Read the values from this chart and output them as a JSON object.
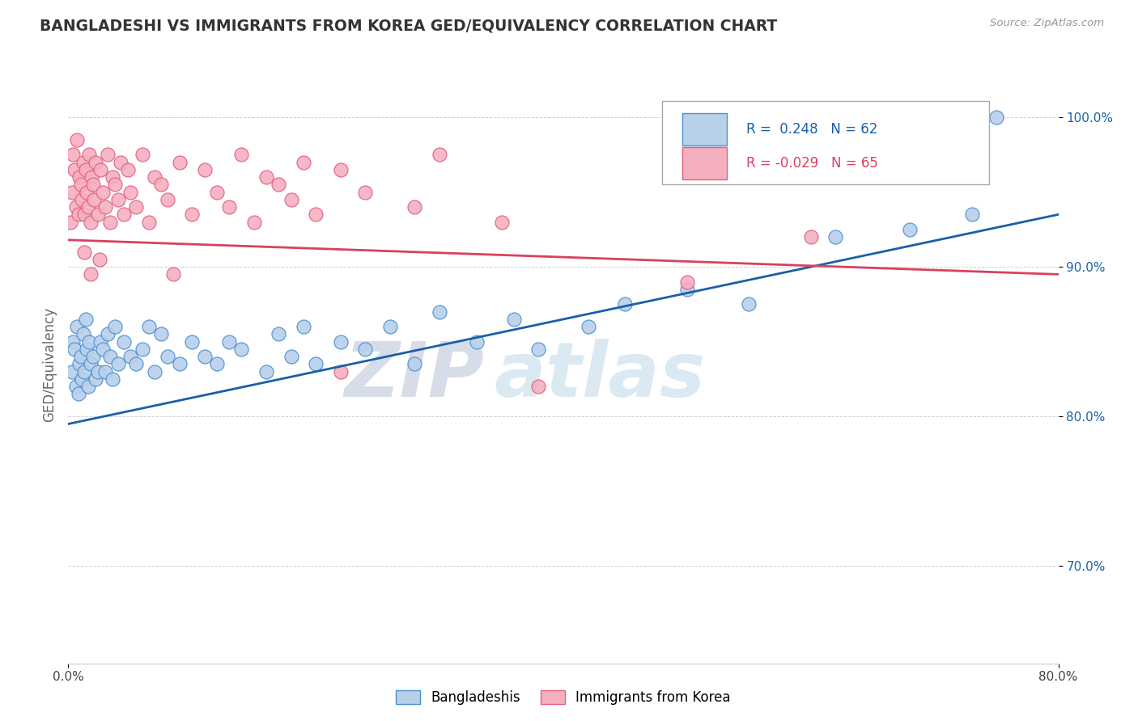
{
  "title": "BANGLADESHI VS IMMIGRANTS FROM KOREA GED/EQUIVALENCY CORRELATION CHART",
  "source": "Source: ZipAtlas.com",
  "ylabel": "GED/Equivalency",
  "xlim": [
    0.0,
    80.0
  ],
  "ylim": [
    63.5,
    103.5
  ],
  "ytick_positions": [
    70.0,
    80.0,
    90.0,
    100.0
  ],
  "ytick_labels": [
    "70.0%",
    "80.0%",
    "90.0%",
    "100.0%"
  ],
  "legend_r_blue": "0.248",
  "legend_n_blue": "62",
  "legend_r_pink": "-0.029",
  "legend_n_pink": "65",
  "blue_color": "#b8d0ea",
  "pink_color": "#f5b0c0",
  "blue_edge_color": "#4a90d0",
  "pink_edge_color": "#e06080",
  "blue_line_color": "#1a5fa8",
  "pink_line_color": "#d94060",
  "watermark_zip": "ZIP",
  "watermark_atlas": "atlas",
  "blue_trend_x0": 0.0,
  "blue_trend_y0": 79.5,
  "blue_trend_x1": 80.0,
  "blue_trend_y1": 93.5,
  "pink_trend_x0": 0.0,
  "pink_trend_y0": 91.8,
  "pink_trend_x1": 80.0,
  "pink_trend_y1": 89.5,
  "blue_scatter_x": [
    0.3,
    0.4,
    0.5,
    0.6,
    0.7,
    0.8,
    0.9,
    1.0,
    1.1,
    1.2,
    1.3,
    1.4,
    1.5,
    1.6,
    1.7,
    1.8,
    2.0,
    2.2,
    2.4,
    2.6,
    2.8,
    3.0,
    3.2,
    3.4,
    3.6,
    3.8,
    4.0,
    4.5,
    5.0,
    5.5,
    6.0,
    6.5,
    7.0,
    7.5,
    8.0,
    9.0,
    10.0,
    11.0,
    12.0,
    13.0,
    14.0,
    16.0,
    17.0,
    18.0,
    19.0,
    20.0,
    22.0,
    24.0,
    26.0,
    28.0,
    30.0,
    33.0,
    36.0,
    38.0,
    42.0,
    45.0,
    50.0,
    55.0,
    62.0,
    68.0,
    73.0,
    75.0
  ],
  "blue_scatter_y": [
    83.0,
    85.0,
    84.5,
    82.0,
    86.0,
    81.5,
    83.5,
    84.0,
    82.5,
    85.5,
    83.0,
    86.5,
    84.5,
    82.0,
    85.0,
    83.5,
    84.0,
    82.5,
    83.0,
    85.0,
    84.5,
    83.0,
    85.5,
    84.0,
    82.5,
    86.0,
    83.5,
    85.0,
    84.0,
    83.5,
    84.5,
    86.0,
    83.0,
    85.5,
    84.0,
    83.5,
    85.0,
    84.0,
    83.5,
    85.0,
    84.5,
    83.0,
    85.5,
    84.0,
    86.0,
    83.5,
    85.0,
    84.5,
    86.0,
    83.5,
    87.0,
    85.0,
    86.5,
    84.5,
    86.0,
    87.5,
    88.5,
    87.5,
    92.0,
    92.5,
    93.5,
    100.0
  ],
  "pink_scatter_x": [
    0.2,
    0.3,
    0.4,
    0.5,
    0.6,
    0.7,
    0.8,
    0.9,
    1.0,
    1.1,
    1.2,
    1.3,
    1.4,
    1.5,
    1.6,
    1.7,
    1.8,
    1.9,
    2.0,
    2.1,
    2.2,
    2.4,
    2.6,
    2.8,
    3.0,
    3.2,
    3.4,
    3.6,
    3.8,
    4.0,
    4.2,
    4.5,
    4.8,
    5.0,
    5.5,
    6.0,
    6.5,
    7.0,
    7.5,
    8.0,
    9.0,
    10.0,
    11.0,
    12.0,
    13.0,
    14.0,
    15.0,
    16.0,
    17.0,
    18.0,
    19.0,
    20.0,
    22.0,
    24.0,
    28.0,
    30.0,
    35.0,
    8.5,
    22.0,
    38.0,
    50.0,
    60.0,
    1.3,
    1.8,
    2.5
  ],
  "pink_scatter_y": [
    93.0,
    95.0,
    97.5,
    96.5,
    94.0,
    98.5,
    93.5,
    96.0,
    95.5,
    94.5,
    97.0,
    93.5,
    96.5,
    95.0,
    94.0,
    97.5,
    93.0,
    96.0,
    95.5,
    94.5,
    97.0,
    93.5,
    96.5,
    95.0,
    94.0,
    97.5,
    93.0,
    96.0,
    95.5,
    94.5,
    97.0,
    93.5,
    96.5,
    95.0,
    94.0,
    97.5,
    93.0,
    96.0,
    95.5,
    94.5,
    97.0,
    93.5,
    96.5,
    95.0,
    94.0,
    97.5,
    93.0,
    96.0,
    95.5,
    94.5,
    97.0,
    93.5,
    96.5,
    95.0,
    94.0,
    97.5,
    93.0,
    89.5,
    83.0,
    82.0,
    89.0,
    92.0,
    91.0,
    89.5,
    90.5
  ]
}
